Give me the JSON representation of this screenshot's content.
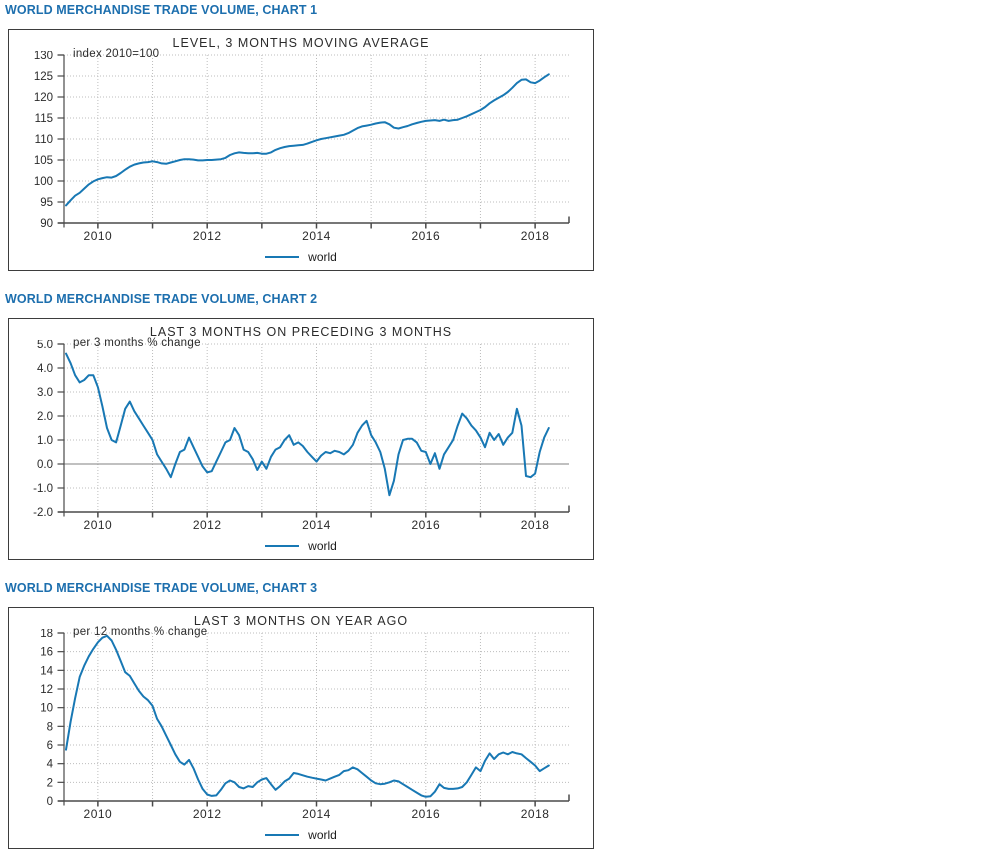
{
  "colors": {
    "heading_blue": "#1d6fae",
    "line_blue": "#1878b4",
    "axis_gray": "#4a4a4a",
    "grid_gray": "#bdbdbd",
    "zero_line_gray": "#808080",
    "text_dark": "#2b2b2b"
  },
  "chart_data": [
    {
      "type": "line",
      "heading": "WORLD MERCHANDISE TRADE VOLUME, CHART 1",
      "title": "LEVEL, 3 MONTHS MOVING AVERAGE",
      "unit_note": "index 2010=100",
      "grid": true,
      "legend_position": "bottom",
      "xlim": [
        2009.38,
        2018.62
      ],
      "x_ticks": [
        2010,
        2011,
        2012,
        2013,
        2014,
        2015,
        2016,
        2017,
        2018
      ],
      "x_labeled_ticks": [
        2010,
        2012,
        2014,
        2016,
        2018
      ],
      "ylim": [
        90,
        130
      ],
      "y_ticks": [
        130,
        125,
        120,
        115,
        110,
        105,
        100,
        95,
        90
      ],
      "y_decimals": 0,
      "zero_line": false,
      "x_start": 2009.4167,
      "x_step": 0.083333,
      "series": [
        {
          "name": "world",
          "values": [
            94.2,
            95.4,
            96.5,
            97.2,
            98.2,
            99.2,
            99.9,
            100.4,
            100.7,
            100.9,
            100.8,
            101.2,
            101.9,
            102.7,
            103.4,
            103.9,
            104.2,
            104.4,
            104.5,
            104.7,
            104.5,
            104.2,
            104.1,
            104.4,
            104.7,
            105.0,
            105.2,
            105.2,
            105.1,
            104.9,
            104.9,
            105.0,
            105.0,
            105.1,
            105.2,
            105.5,
            106.2,
            106.6,
            106.8,
            106.7,
            106.6,
            106.6,
            106.7,
            106.5,
            106.5,
            106.8,
            107.4,
            107.8,
            108.1,
            108.3,
            108.4,
            108.5,
            108.6,
            108.9,
            109.3,
            109.7,
            110.0,
            110.2,
            110.4,
            110.6,
            110.8,
            111.0,
            111.4,
            112.0,
            112.6,
            113.0,
            113.2,
            113.4,
            113.7,
            113.9,
            114.0,
            113.5,
            112.7,
            112.5,
            112.8,
            113.1,
            113.5,
            113.8,
            114.1,
            114.3,
            114.4,
            114.5,
            114.3,
            114.6,
            114.3,
            114.5,
            114.6,
            115.0,
            115.4,
            115.9,
            116.4,
            116.9,
            117.6,
            118.5,
            119.2,
            119.8,
            120.4,
            121.2,
            122.2,
            123.3,
            124.1,
            124.2,
            123.5,
            123.3,
            123.9,
            124.7,
            125.4
          ]
        }
      ]
    },
    {
      "type": "line",
      "heading": "WORLD MERCHANDISE TRADE VOLUME, CHART 2",
      "title": "LAST 3 MONTHS ON PRECEDING 3 MONTHS",
      "unit_note": "per 3 months % change",
      "grid": true,
      "legend_position": "bottom",
      "xlim": [
        2009.38,
        2018.62
      ],
      "x_ticks": [
        2010,
        2011,
        2012,
        2013,
        2014,
        2015,
        2016,
        2017,
        2018
      ],
      "x_labeled_ticks": [
        2010,
        2012,
        2014,
        2016,
        2018
      ],
      "ylim": [
        -2,
        5
      ],
      "y_ticks": [
        5.0,
        4.0,
        3.0,
        2.0,
        1.0,
        0.0,
        -1.0,
        -2.0
      ],
      "y_decimals": 1,
      "zero_line": true,
      "x_start": 2009.4167,
      "x_step": 0.083333,
      "series": [
        {
          "name": "world",
          "values": [
            4.6,
            4.2,
            3.7,
            3.4,
            3.5,
            3.7,
            3.7,
            3.2,
            2.4,
            1.5,
            1.0,
            0.9,
            1.6,
            2.3,
            2.6,
            2.2,
            1.9,
            1.6,
            1.3,
            1.0,
            0.4,
            0.1,
            -0.2,
            -0.55,
            0.0,
            0.5,
            0.6,
            1.1,
            0.7,
            0.3,
            -0.1,
            -0.35,
            -0.3,
            0.1,
            0.5,
            0.9,
            1.0,
            1.5,
            1.2,
            0.6,
            0.5,
            0.2,
            -0.25,
            0.1,
            -0.2,
            0.3,
            0.6,
            0.7,
            1.0,
            1.2,
            0.8,
            0.9,
            0.75,
            0.5,
            0.3,
            0.1,
            0.35,
            0.5,
            0.45,
            0.55,
            0.5,
            0.4,
            0.55,
            0.8,
            1.3,
            1.6,
            1.8,
            1.2,
            0.9,
            0.5,
            -0.2,
            -1.3,
            -0.7,
            0.4,
            1.0,
            1.05,
            1.05,
            0.9,
            0.55,
            0.5,
            0.0,
            0.45,
            -0.2,
            0.4,
            0.7,
            1.0,
            1.6,
            2.1,
            1.9,
            1.6,
            1.4,
            1.1,
            0.7,
            1.3,
            1.0,
            1.25,
            0.8,
            1.1,
            1.3,
            2.3,
            1.6,
            -0.5,
            -0.55,
            -0.4,
            0.5,
            1.1,
            1.5
          ]
        }
      ]
    },
    {
      "type": "line",
      "heading": "WORLD MERCHANDISE TRADE VOLUME, CHART 3",
      "title": "LAST 3 MONTHS ON YEAR AGO",
      "unit_note": "per 12 months % change",
      "grid": true,
      "legend_position": "bottom",
      "xlim": [
        2009.38,
        2018.62
      ],
      "x_ticks": [
        2010,
        2011,
        2012,
        2013,
        2014,
        2015,
        2016,
        2017,
        2018
      ],
      "x_labeled_ticks": [
        2010,
        2012,
        2014,
        2016,
        2018
      ],
      "ylim": [
        0,
        18
      ],
      "y_ticks": [
        18,
        16,
        14,
        12,
        10,
        8,
        6,
        4,
        2,
        0
      ],
      "y_decimals": 0,
      "zero_line": false,
      "x_start": 2009.4167,
      "x_step": 0.083333,
      "series": [
        {
          "name": "world",
          "values": [
            5.5,
            8.5,
            11.0,
            13.3,
            14.5,
            15.5,
            16.3,
            17.0,
            17.5,
            17.7,
            17.2,
            16.2,
            15.0,
            13.8,
            13.4,
            12.6,
            11.8,
            11.2,
            10.8,
            10.2,
            8.8,
            8.0,
            7.0,
            6.0,
            5.0,
            4.2,
            3.9,
            4.4,
            3.5,
            2.3,
            1.3,
            0.7,
            0.55,
            0.6,
            1.2,
            1.9,
            2.2,
            2.0,
            1.5,
            1.35,
            1.6,
            1.5,
            2.0,
            2.3,
            2.45,
            1.8,
            1.2,
            1.6,
            2.1,
            2.4,
            3.0,
            2.9,
            2.75,
            2.6,
            2.5,
            2.4,
            2.3,
            2.2,
            2.4,
            2.6,
            2.8,
            3.2,
            3.3,
            3.6,
            3.4,
            3.0,
            2.6,
            2.2,
            1.9,
            1.8,
            1.85,
            2.0,
            2.2,
            2.1,
            1.8,
            1.5,
            1.2,
            0.9,
            0.6,
            0.45,
            0.5,
            1.0,
            1.8,
            1.4,
            1.3,
            1.3,
            1.35,
            1.5,
            2.0,
            2.8,
            3.6,
            3.2,
            4.3,
            5.1,
            4.5,
            5.0,
            5.2,
            5.0,
            5.25,
            5.1,
            5.0,
            4.6,
            4.2,
            3.8,
            3.2,
            3.5,
            3.8
          ]
        }
      ]
    }
  ]
}
